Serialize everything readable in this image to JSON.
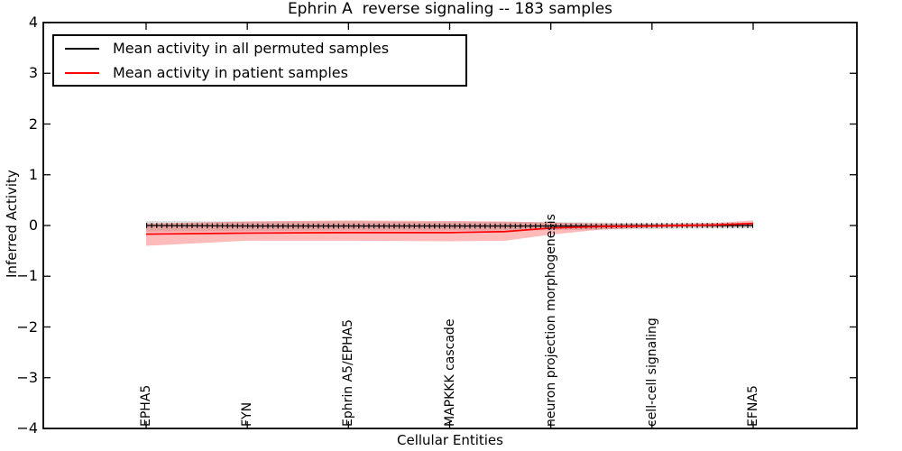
{
  "chart_data": {
    "type": "line",
    "title": "Ephrin A  reverse signaling -- 183 samples",
    "xlabel": "Cellular Entities",
    "ylabel": "Inferred Activity",
    "ylim": [
      -4,
      4
    ],
    "ytick_labels": [
      "4",
      "3",
      "2",
      "1",
      "0",
      "−1",
      "−2",
      "−3",
      "−4"
    ],
    "grid": false,
    "legend_position": "upper left",
    "categories": [
      "EPHA5",
      "FYN",
      "Ephrin A5/EPHA5",
      "MAPKKK cascade",
      "neuron projection morphogenesis",
      "cell-cell signaling",
      "EFNA5"
    ],
    "category_x": [
      0,
      1,
      2,
      3,
      4,
      5,
      6
    ],
    "x": [
      0,
      1,
      2,
      3,
      3.55,
      4,
      4.5,
      5,
      5.6,
      6
    ],
    "series": [
      {
        "name": "Mean activity in all permuted samples",
        "color": "#000000",
        "values": [
          0.0,
          -0.01,
          -0.01,
          -0.01,
          -0.01,
          -0.01,
          -0.01,
          0.0,
          0.0,
          0.0
        ],
        "band_hi": [
          0.09,
          0.08,
          0.08,
          0.07,
          0.07,
          0.07,
          0.06,
          0.05,
          0.05,
          0.05
        ],
        "band_lo": [
          -0.12,
          -0.11,
          -0.1,
          -0.1,
          -0.1,
          -0.09,
          -0.08,
          -0.07,
          -0.06,
          -0.06
        ],
        "band_color": "rgba(0,0,0,0.13)",
        "markers": "plus-ticks"
      },
      {
        "name": "Mean activity in patient samples",
        "color": "#ff0000",
        "values": [
          -0.17,
          -0.15,
          -0.14,
          -0.14,
          -0.12,
          -0.05,
          -0.02,
          -0.01,
          0.01,
          0.04
        ],
        "band_hi": [
          0.04,
          0.08,
          0.1,
          0.09,
          0.08,
          0.06,
          0.04,
          0.03,
          0.05,
          0.1
        ],
        "band_lo": [
          -0.4,
          -0.3,
          -0.3,
          -0.31,
          -0.3,
          -0.18,
          -0.08,
          -0.04,
          -0.03,
          -0.02
        ],
        "band_color": "rgba(255,0,0,0.27)",
        "markers": "none"
      }
    ],
    "frame_color": "#000000",
    "background_color": "#ffffff"
  }
}
